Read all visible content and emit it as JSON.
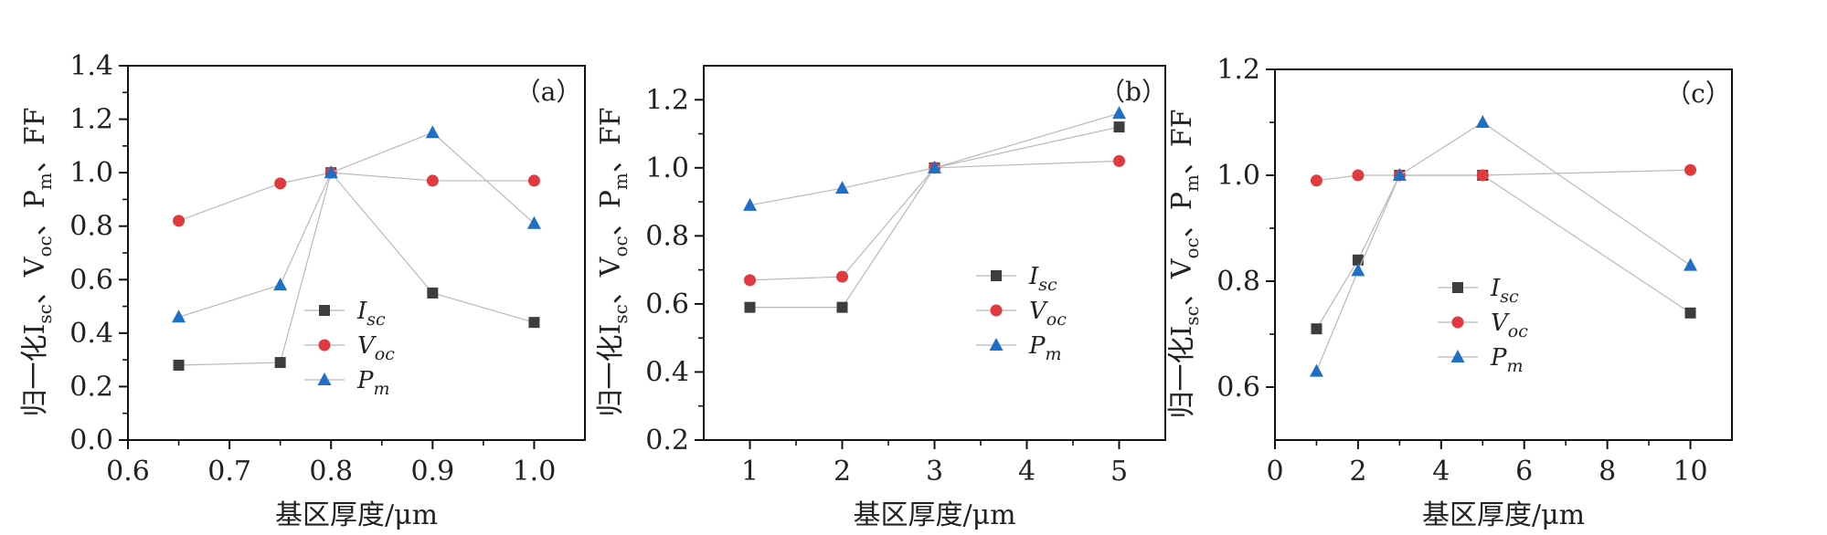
{
  "chart_data": [
    {
      "type": "line",
      "panel_label": "（a）",
      "xlabel": "基区厚度/μm",
      "ylabel": {
        "parts": [
          {
            "t": "归一化I"
          },
          {
            "t": "sc",
            "sub": true
          },
          {
            "t": "、V"
          },
          {
            "t": "oc",
            "sub": true
          },
          {
            "t": "、P"
          },
          {
            "t": "m",
            "sub": true
          },
          {
            "t": "、FF"
          }
        ]
      },
      "xlim": [
        0.6,
        1.05
      ],
      "ylim": [
        0.0,
        1.4
      ],
      "xticks": [
        0.6,
        0.7,
        0.8,
        0.9,
        1.0
      ],
      "xtick_labels": [
        "0.6",
        "0.7",
        "0.8",
        "0.9",
        "1.0"
      ],
      "yticks": [
        0.0,
        0.2,
        0.4,
        0.6,
        0.8,
        1.0,
        1.2,
        1.4
      ],
      "ytick_labels": [
        "0.0",
        "0.2",
        "0.4",
        "0.6",
        "0.8",
        "1.0",
        "1.2",
        "1.4"
      ],
      "legend_position": "center-right",
      "series": [
        {
          "name": "I",
          "sub": "sc",
          "marker": "square",
          "color": "#3d3d3d",
          "x": [
            0.65,
            0.75,
            0.8,
            0.9,
            1.0
          ],
          "y": [
            0.28,
            0.29,
            1.0,
            0.55,
            0.44
          ]
        },
        {
          "name": "V",
          "sub": "oc",
          "marker": "circle",
          "color": "#e0393e",
          "x": [
            0.65,
            0.75,
            0.8,
            0.9,
            1.0
          ],
          "y": [
            0.82,
            0.96,
            1.0,
            0.97,
            0.97
          ]
        },
        {
          "name": "P",
          "sub": "m",
          "marker": "triangle",
          "color": "#1f6fc6",
          "x": [
            0.65,
            0.75,
            0.8,
            0.9,
            1.0
          ],
          "y": [
            0.46,
            0.58,
            1.0,
            1.15,
            0.81
          ]
        }
      ]
    },
    {
      "type": "line",
      "panel_label": "（b）",
      "xlabel": "基区厚度/μm",
      "ylabel": {
        "parts": [
          {
            "t": "归一化I"
          },
          {
            "t": "sc",
            "sub": true
          },
          {
            "t": "、V"
          },
          {
            "t": "oc",
            "sub": true
          },
          {
            "t": "、P"
          },
          {
            "t": "m",
            "sub": true
          },
          {
            "t": "、FF"
          }
        ]
      },
      "xlim": [
        0.5,
        5.5
      ],
      "ylim": [
        0.2,
        1.3
      ],
      "xticks": [
        1,
        2,
        3,
        4,
        5
      ],
      "xtick_labels": [
        "1",
        "2",
        "3",
        "4",
        "5"
      ],
      "yticks": [
        0.2,
        0.4,
        0.6,
        0.8,
        1.0,
        1.2
      ],
      "ytick_labels": [
        "0.2",
        "0.4",
        "0.6",
        "0.8",
        "1.0",
        "1.2"
      ],
      "legend_position": "center-right",
      "series": [
        {
          "name": "I",
          "sub": "sc",
          "marker": "square",
          "color": "#3d3d3d",
          "x": [
            1,
            2,
            3,
            5
          ],
          "y": [
            0.59,
            0.59,
            1.0,
            1.12
          ]
        },
        {
          "name": "V",
          "sub": "oc",
          "marker": "circle",
          "color": "#e0393e",
          "x": [
            1,
            2,
            3,
            5
          ],
          "y": [
            0.67,
            0.68,
            1.0,
            1.02
          ]
        },
        {
          "name": "P",
          "sub": "m",
          "marker": "triangle",
          "color": "#1f6fc6",
          "x": [
            1,
            2,
            3,
            5
          ],
          "y": [
            0.89,
            0.94,
            1.0,
            1.16
          ]
        }
      ]
    },
    {
      "type": "line",
      "panel_label": "（c）",
      "xlabel": "基区厚度/μm",
      "ylabel": {
        "parts": [
          {
            "t": "归一化I"
          },
          {
            "t": "sc",
            "sub": true
          },
          {
            "t": "、V"
          },
          {
            "t": "oc",
            "sub": true
          },
          {
            "t": "、P"
          },
          {
            "t": "m",
            "sub": true
          },
          {
            "t": "、FF"
          }
        ]
      },
      "xlim": [
        0,
        11
      ],
      "ylim": [
        0.5,
        1.2
      ],
      "xticks": [
        0,
        2,
        4,
        6,
        8,
        10
      ],
      "xtick_labels": [
        "0",
        "2",
        "4",
        "6",
        "8",
        "10"
      ],
      "yticks": [
        0.6,
        0.8,
        1.0,
        1.2
      ],
      "ytick_labels": [
        "0.6",
        "0.8",
        "1.0",
        "1.2"
      ],
      "legend_position": "center",
      "series": [
        {
          "name": "I",
          "sub": "sc",
          "marker": "square",
          "color": "#3d3d3d",
          "x": [
            1,
            2,
            3,
            5,
            10
          ],
          "y": [
            0.71,
            0.84,
            1.0,
            1.0,
            0.74
          ]
        },
        {
          "name": "V",
          "sub": "oc",
          "marker": "circle",
          "color": "#e0393e",
          "x": [
            1,
            2,
            3,
            5,
            10
          ],
          "y": [
            0.99,
            1.0,
            1.0,
            1.0,
            1.01
          ]
        },
        {
          "name": "P",
          "sub": "m",
          "marker": "triangle",
          "color": "#1f6fc6",
          "x": [
            1,
            2,
            3,
            5,
            10
          ],
          "y": [
            0.63,
            0.82,
            1.0,
            1.1,
            0.83
          ]
        }
      ]
    }
  ]
}
